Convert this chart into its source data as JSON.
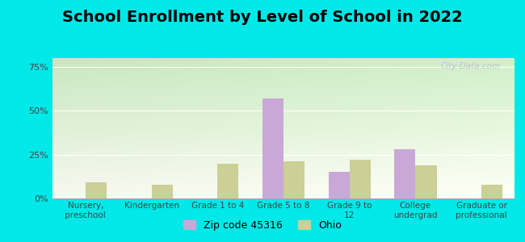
{
  "title": "School Enrollment by Level of School in 2022",
  "categories": [
    "Nursery,\npreschool",
    "Kindergarten",
    "Grade 1 to 4",
    "Grade 5 to 8",
    "Grade 9 to\n12",
    "College\nundergrad",
    "Graduate or\nprofessional"
  ],
  "zip_values": [
    0,
    0,
    0,
    57,
    15,
    28,
    0
  ],
  "ohio_values": [
    9,
    8,
    20,
    21,
    22,
    19,
    8
  ],
  "zip_color": "#c9a8d8",
  "ohio_color": "#cccf96",
  "zip_label": "Zip code 45316",
  "ohio_label": "Ohio",
  "ylim": [
    0,
    80
  ],
  "yticks": [
    0,
    25,
    50,
    75
  ],
  "ytick_labels": [
    "0%",
    "25%",
    "50%",
    "75%"
  ],
  "background_color": "#00e8e8",
  "plot_bg_top_left": "#c8e8c0",
  "plot_bg_top_right": "#e8f0e0",
  "plot_bg_bottom": "#f8f8f0",
  "watermark": "City-Data.com",
  "title_fontsize": 14,
  "bar_width": 0.32
}
